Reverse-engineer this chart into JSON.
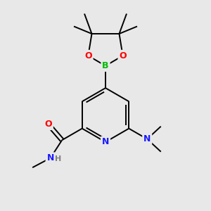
{
  "bg_color": "#e8e8e8",
  "atom_colors": {
    "C": "#000000",
    "N": "#1a1aff",
    "O": "#ff0000",
    "B": "#00bb00",
    "H": "#808080"
  },
  "bond_color": "#000000",
  "bond_width": 1.4,
  "font_size_atom": 9,
  "figsize": [
    3.0,
    3.0
  ],
  "dpi": 100
}
